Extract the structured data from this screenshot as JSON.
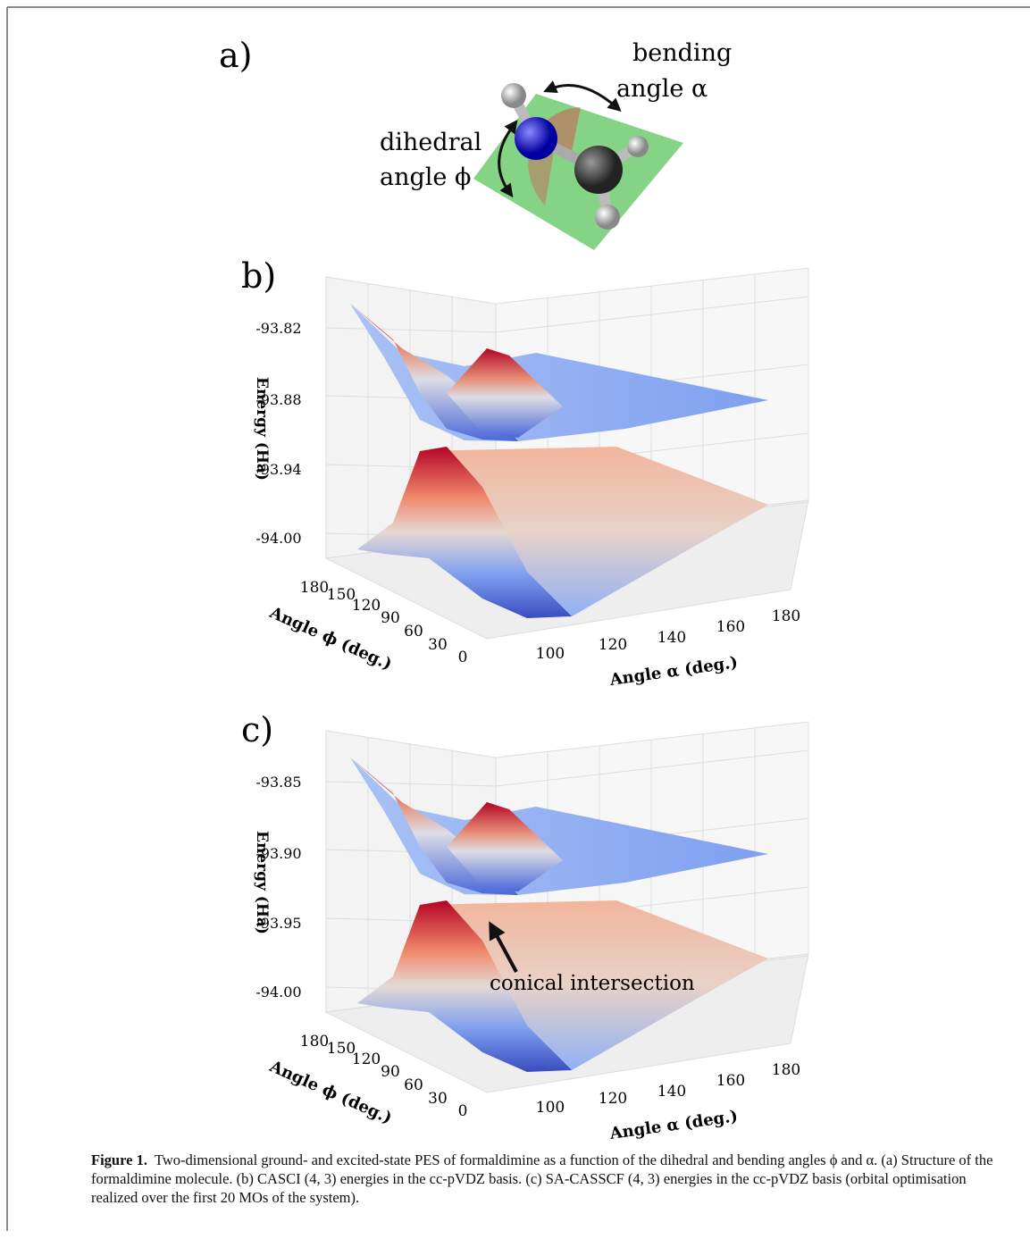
{
  "panel_a": {
    "label": "a)",
    "bending": [
      "bending",
      "angle α"
    ],
    "dihedral": [
      "dihedral",
      "angle ϕ"
    ]
  },
  "panel_b": {
    "label": "b)",
    "zlabel": "Energy (Ha)",
    "xlabel": "Angle α (deg.)",
    "ylabel": "Angle ϕ (deg.)",
    "zticks": [
      "-93.82",
      "-93.88",
      "-93.94",
      "-94.00"
    ],
    "xticks": [
      "100",
      "120",
      "140",
      "160",
      "180"
    ],
    "yticks": [
      "180",
      "150",
      "120",
      "90",
      "60",
      "30",
      "0"
    ]
  },
  "panel_c": {
    "label": "c)",
    "zlabel": "Energy (Ha)",
    "xlabel": "Angle α (deg.)",
    "ylabel": "Angle ϕ (deg.)",
    "zticks": [
      "-93.85",
      "-93.90",
      "-93.95",
      "-94.00"
    ],
    "xticks": [
      "100",
      "120",
      "140",
      "160",
      "180"
    ],
    "yticks": [
      "180",
      "150",
      "120",
      "90",
      "60",
      "30",
      "0"
    ],
    "annotation": "conical intersection"
  },
  "caption": {
    "label": "Figure 1.",
    "text": "Two-dimensional ground- and excited-state PES of formaldimine as a function of the dihedral and bending angles ϕ and α. (a) Structure of the formaldimine molecule. (b) CASCI (4, 3) energies in the cc-pVDZ basis. (c) SA-CASSCF (4, 3) energies in the cc-pVDZ basis (orbital optimisation realized over the first 20 MOs of the system)."
  }
}
